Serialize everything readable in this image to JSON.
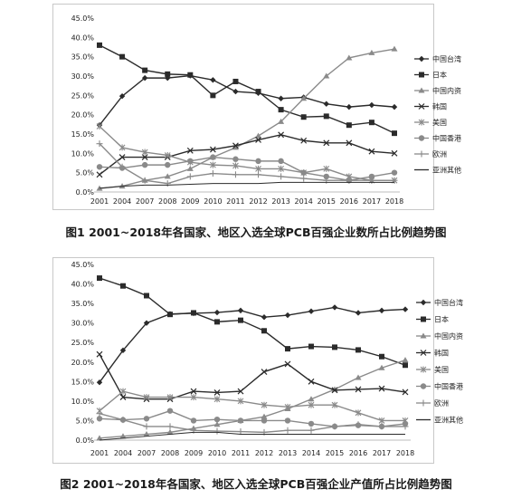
{
  "chart_data": [
    {
      "type": "line",
      "title": "图1 2001~2018年各国家、地区入选全球PCB百强企业数所占比例趋势图",
      "x": [
        "2001",
        "2004",
        "2007",
        "2008",
        "2009",
        "2010",
        "2011",
        "2012",
        "2013",
        "2014",
        "2015",
        "2016",
        "2017",
        "2018"
      ],
      "yticks": [
        "0.0%",
        "5.0%",
        "10.0%",
        "15.0%",
        "20.0%",
        "25.0%",
        "30.0%",
        "35.0%",
        "40.0%",
        "45.0%"
      ],
      "ylim": [
        0,
        45
      ],
      "legend_position": "right",
      "series": [
        {
          "name": "中国台湾",
          "marker": "diamond",
          "values": [
            17.3,
            24.8,
            29.5,
            29.5,
            30.1,
            29.0,
            26.0,
            25.6,
            24.2,
            24.5,
            22.8,
            22.0,
            22.5,
            22.0
          ]
        },
        {
          "name": "日本",
          "marker": "square",
          "values": [
            38.0,
            35.0,
            31.5,
            30.5,
            30.3,
            25.0,
            28.6,
            26.0,
            21.3,
            19.4,
            19.6,
            17.3,
            18.0,
            15.2
          ]
        },
        {
          "name": "中国内资",
          "marker": "triangle",
          "values": [
            0.9,
            1.5,
            3.0,
            4.0,
            6.0,
            9.0,
            11.5,
            14.5,
            18.2,
            24.2,
            30.0,
            34.7,
            36.0,
            37.0
          ]
        },
        {
          "name": "韩国",
          "marker": "x",
          "values": [
            4.5,
            9.0,
            9.0,
            9.0,
            10.7,
            11.0,
            12.0,
            13.5,
            14.8,
            13.3,
            12.7,
            12.7,
            10.5,
            10.0
          ]
        },
        {
          "name": "美国",
          "marker": "star",
          "values": [
            17.0,
            11.5,
            10.3,
            9.5,
            7.7,
            7.0,
            6.8,
            6.0,
            6.0,
            5.0,
            6.0,
            4.0,
            3.0,
            3.0
          ]
        },
        {
          "name": "中国香港",
          "marker": "circle",
          "values": [
            6.5,
            6.2,
            7.0,
            7.0,
            8.0,
            9.0,
            8.5,
            8.0,
            8.0,
            5.0,
            4.0,
            3.0,
            4.0,
            5.0
          ]
        },
        {
          "name": "欧洲",
          "marker": "plus",
          "values": [
            12.5,
            6.5,
            3.0,
            2.2,
            4.0,
            4.8,
            4.5,
            4.5,
            4.0,
            3.5,
            3.0,
            3.0,
            3.0,
            3.0
          ]
        },
        {
          "name": "亚洲其他",
          "marker": "none",
          "values": [
            1.0,
            1.5,
            1.8,
            1.8,
            2.0,
            2.2,
            2.2,
            2.2,
            2.5,
            2.5,
            2.5,
            2.5,
            2.5,
            2.5
          ]
        }
      ]
    },
    {
      "type": "line",
      "title": "图2 2001~2018年各国家、地区入选全球PCB百强企业产值所占比例趋势图",
      "x": [
        "2001",
        "2004",
        "2007",
        "2008",
        "2009",
        "2010",
        "2011",
        "2012",
        "2013",
        "2014",
        "2015",
        "2016",
        "2017",
        "2018"
      ],
      "yticks": [
        "0.0%",
        "5.0%",
        "10.0%",
        "15.0%",
        "20.0%",
        "25.0%",
        "30.0%",
        "35.0%",
        "40.0%",
        "45.0%"
      ],
      "ylim": [
        0,
        45
      ],
      "legend_position": "right",
      "series": [
        {
          "name": "中国台湾",
          "marker": "diamond",
          "values": [
            14.8,
            23.0,
            30.0,
            32.3,
            32.5,
            32.7,
            33.2,
            31.5,
            32.0,
            33.0,
            34.0,
            32.6,
            33.2,
            33.5
          ]
        },
        {
          "name": "日本",
          "marker": "square",
          "values": [
            41.5,
            39.5,
            37.0,
            32.2,
            32.6,
            30.3,
            30.7,
            28.0,
            23.4,
            24.0,
            23.8,
            23.1,
            21.4,
            19.2
          ]
        },
        {
          "name": "中国内资",
          "marker": "triangle",
          "values": [
            0.5,
            1.0,
            1.5,
            2.0,
            3.0,
            4.0,
            5.0,
            6.0,
            8.0,
            10.5,
            13.0,
            16.0,
            18.5,
            20.5
          ]
        },
        {
          "name": "韩国",
          "marker": "x",
          "values": [
            22.0,
            11.0,
            10.5,
            10.5,
            12.5,
            12.2,
            12.5,
            17.5,
            19.5,
            15.0,
            12.8,
            13.0,
            13.2,
            12.3
          ]
        },
        {
          "name": "美国",
          "marker": "star",
          "values": [
            7.5,
            12.5,
            11.0,
            11.0,
            11.0,
            10.5,
            10.0,
            9.0,
            8.5,
            9.0,
            9.0,
            7.0,
            5.0,
            5.0
          ]
        },
        {
          "name": "中国香港",
          "marker": "circle",
          "values": [
            5.5,
            5.2,
            5.5,
            7.5,
            5.0,
            5.3,
            5.0,
            5.0,
            5.0,
            4.2,
            3.5,
            3.8,
            3.5,
            4.2
          ]
        },
        {
          "name": "欧洲",
          "marker": "plus",
          "values": [
            6.8,
            5.2,
            3.5,
            3.5,
            2.5,
            2.3,
            2.2,
            2.0,
            2.5,
            2.5,
            3.5,
            4.0,
            3.5,
            3.5
          ]
        },
        {
          "name": "亚洲其他",
          "marker": "none",
          "values": [
            0.0,
            0.5,
            1.0,
            1.5,
            2.0,
            2.0,
            1.5,
            1.5,
            1.5,
            1.5,
            1.5,
            1.5,
            1.5,
            1.5
          ]
        }
      ]
    }
  ],
  "colors": {
    "line": "#2b2b2b",
    "grey": "#8a8a8a",
    "frame": "#c8c8c8"
  }
}
